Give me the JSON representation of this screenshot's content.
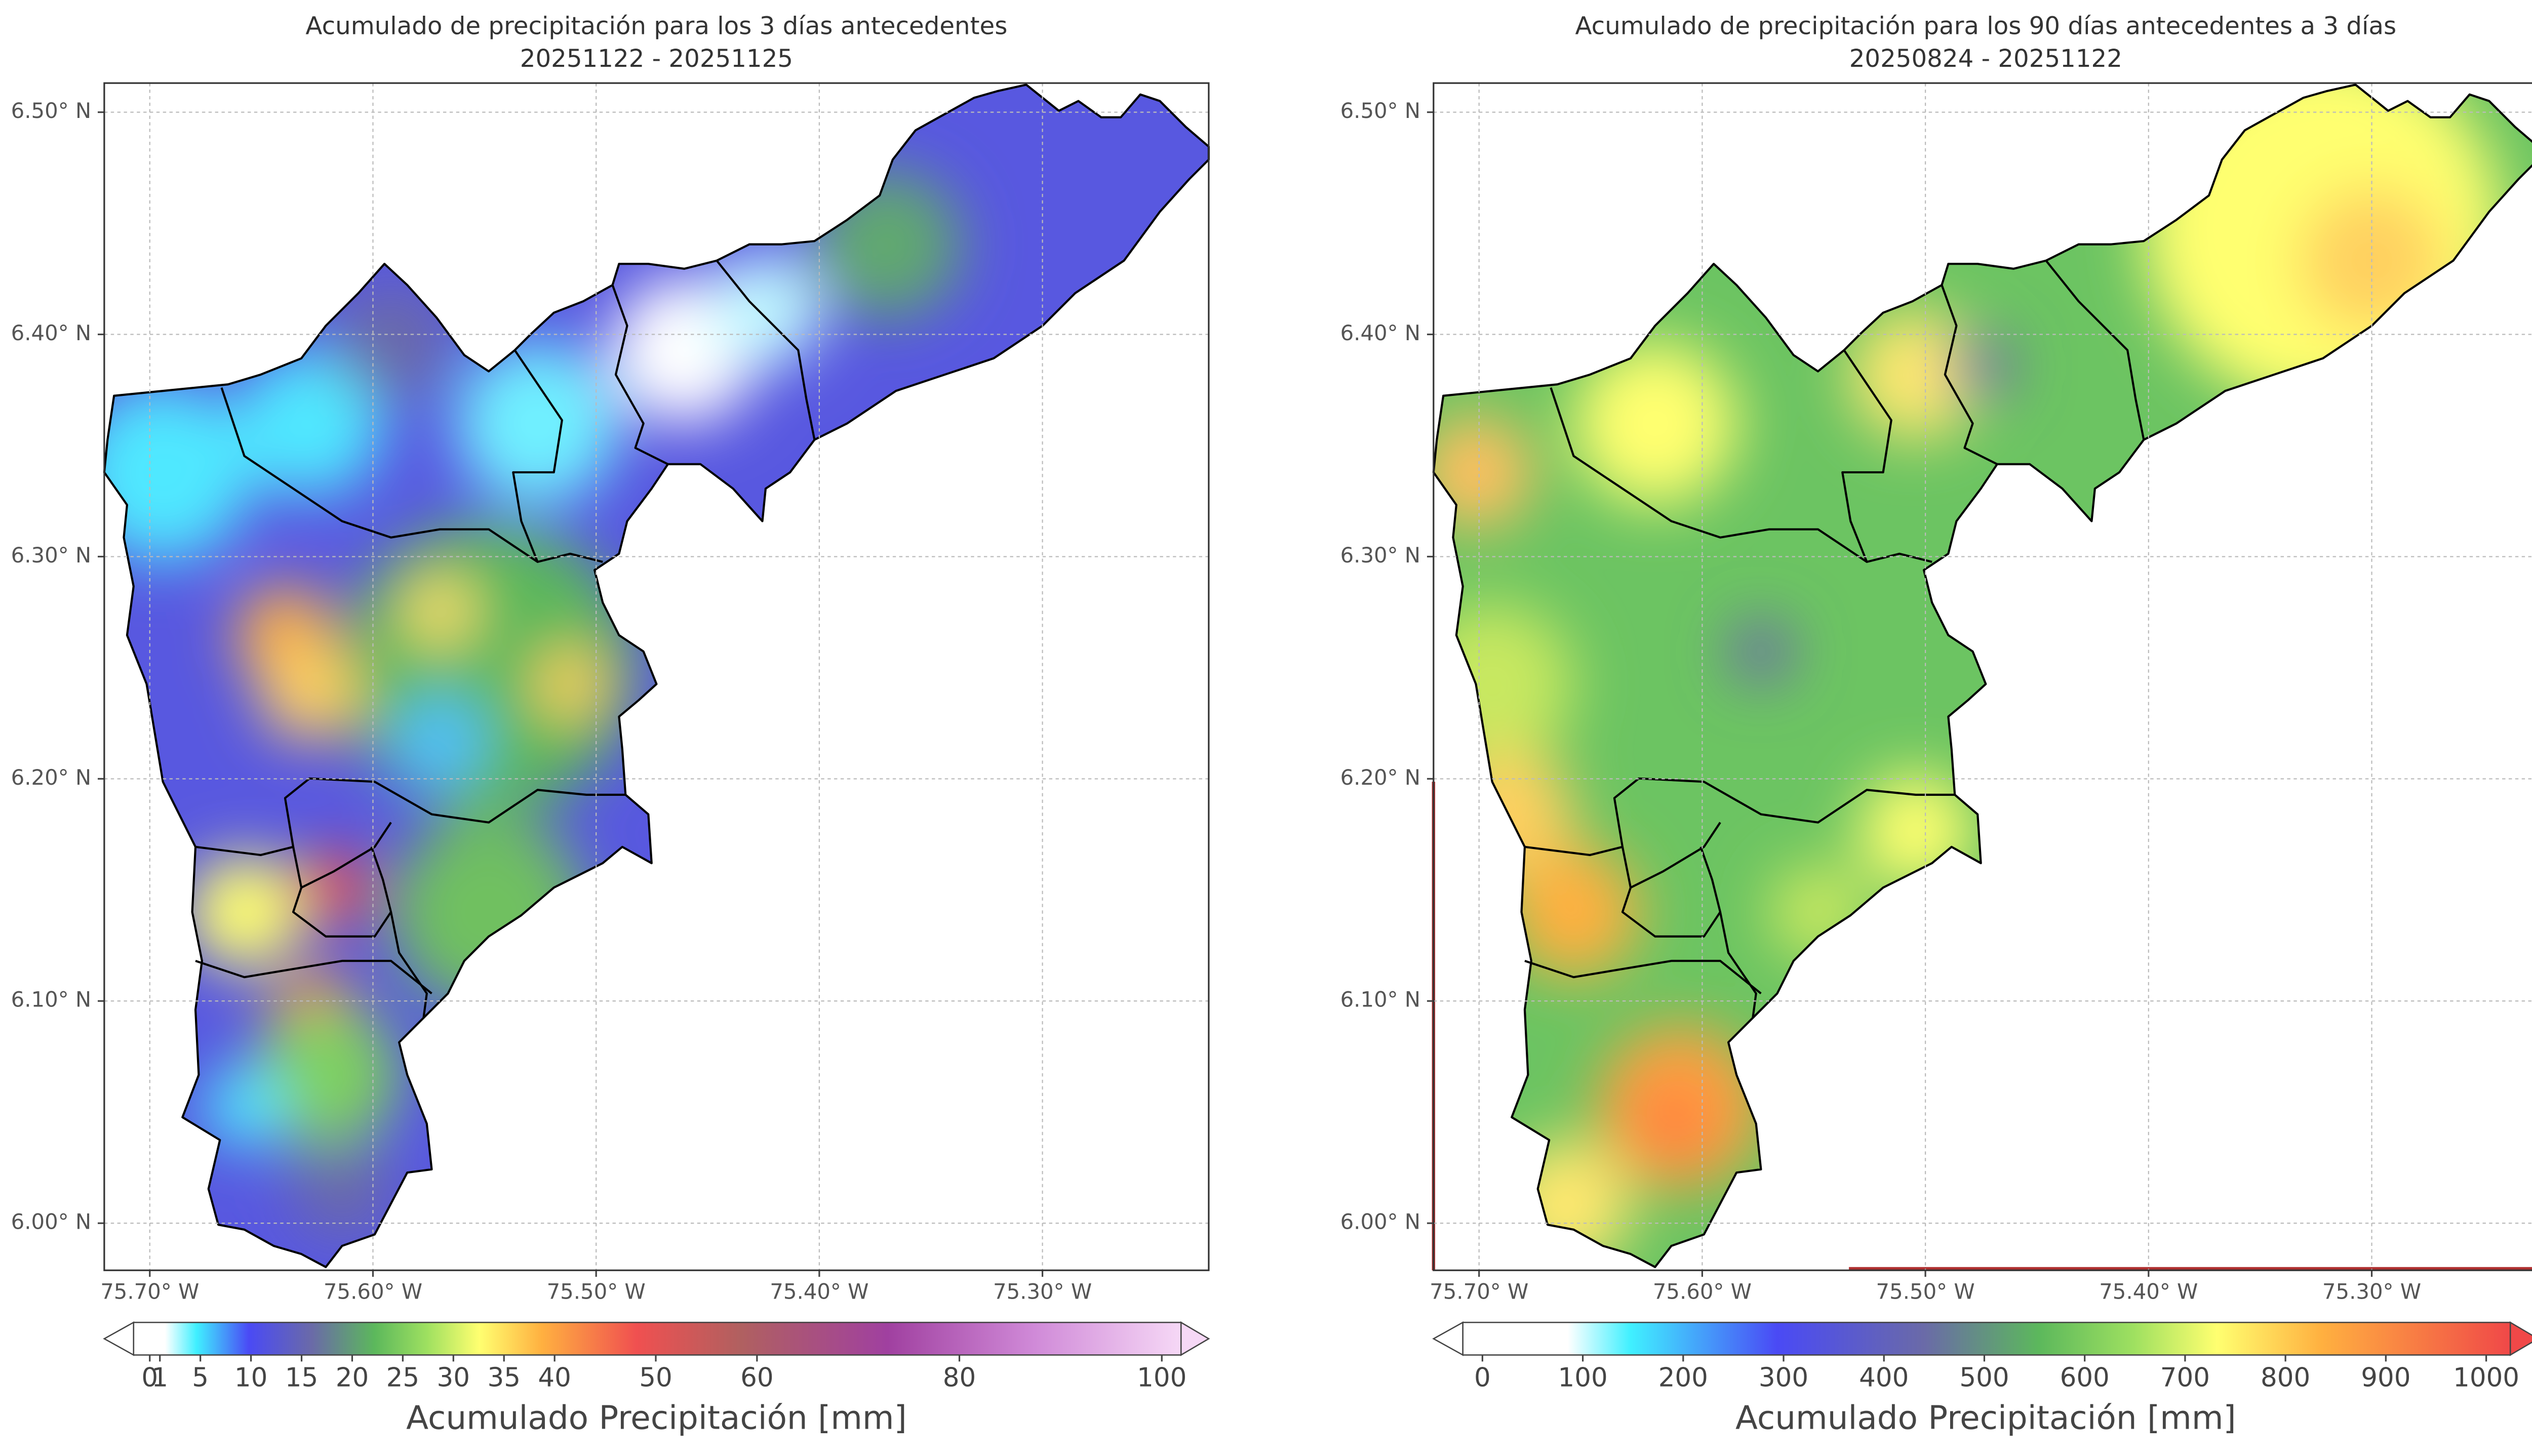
{
  "panels": [
    {
      "title": "Acumulado de precipitación para los 3 días antecedentes",
      "subtitle": "20251122 - 20251125",
      "xlim": [
        -75.7204,
        -75.2255
      ],
      "ylim": [
        5.9788,
        6.5131
      ],
      "xticks": [
        {
          "value": -75.7,
          "label": "75.70° W"
        },
        {
          "value": -75.6,
          "label": "75.60° W"
        },
        {
          "value": -75.5,
          "label": "75.50° W"
        },
        {
          "value": -75.4,
          "label": "75.40° W"
        },
        {
          "value": -75.3,
          "label": "75.30° W"
        }
      ],
      "yticks": [
        {
          "value": 6.0,
          "label": "6.00° N"
        },
        {
          "value": 6.1,
          "label": "6.10° N"
        },
        {
          "value": 6.2,
          "label": "6.20° N"
        },
        {
          "value": 6.3,
          "label": "6.30° N"
        },
        {
          "value": 6.4,
          "label": "6.40° N"
        },
        {
          "value": 6.5,
          "label": "6.50° N"
        }
      ],
      "grid": true,
      "colorbar": {
        "label": "Acumulado Precipitación [mm]",
        "range": [
          -1.6,
          101.9
        ],
        "ticks": [
          0,
          1,
          5,
          10,
          15,
          20,
          25,
          30,
          35,
          40,
          50,
          60,
          80,
          100
        ]
      }
    },
    {
      "title": "Acumulado de precipitación para los 90 días antecedentes a 3 días",
      "subtitle": "20250824 - 20251122",
      "xlim": [
        -75.7204,
        -75.2255
      ],
      "ylim": [
        5.9788,
        6.5131
      ],
      "xticks": [
        {
          "value": -75.7,
          "label": "75.70° W"
        },
        {
          "value": -75.6,
          "label": "75.60° W"
        },
        {
          "value": -75.5,
          "label": "75.50° W"
        },
        {
          "value": -75.4,
          "label": "75.40° W"
        },
        {
          "value": -75.3,
          "label": "75.30° W"
        }
      ],
      "yticks": [
        {
          "value": 6.0,
          "label": "6.00° N"
        },
        {
          "value": 6.1,
          "label": "6.10° N"
        },
        {
          "value": 6.2,
          "label": "6.20° N"
        },
        {
          "value": 6.3,
          "label": "6.30° N"
        },
        {
          "value": 6.4,
          "label": "6.40° N"
        },
        {
          "value": 6.5,
          "label": "6.50° N"
        }
      ],
      "grid": true,
      "colorbar": {
        "label": "Acumulado Precipitación [mm]",
        "range": [
          -19.5,
          1024
        ],
        "ticks": [
          0,
          100,
          200,
          300,
          400,
          500,
          600,
          700,
          800,
          900,
          1000
        ]
      }
    }
  ]
}
